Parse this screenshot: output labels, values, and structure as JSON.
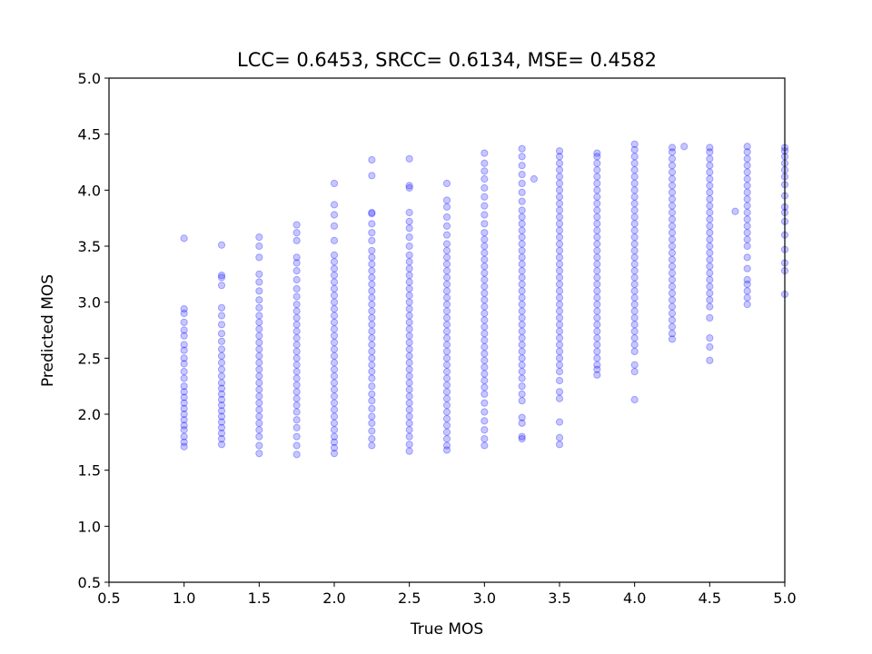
{
  "chart_data": {
    "type": "scatter",
    "title": "LCC= 0.6453, SRCC= 0.6134, MSE= 0.4582",
    "xlabel": "True MOS",
    "ylabel": "Predicted MOS",
    "xlim": [
      0.5,
      5.0
    ],
    "ylim": [
      0.5,
      5.0
    ],
    "xticks": [
      "0.5",
      "1.0",
      "1.5",
      "2.0",
      "2.5",
      "3.0",
      "3.5",
      "4.0",
      "4.5",
      "5.0"
    ],
    "yticks": [
      "0.5",
      "1.0",
      "1.5",
      "2.0",
      "2.5",
      "3.0",
      "3.5",
      "4.0",
      "4.5",
      "5.0"
    ],
    "grid": false,
    "marker_color": "#0000ff",
    "marker_alpha": 0.22,
    "columns": [
      {
        "x": 1.0,
        "y": [
          1.71,
          1.75,
          1.8,
          1.86,
          1.9,
          1.95,
          2.0,
          2.05,
          2.1,
          2.15,
          2.2,
          2.25,
          2.32,
          2.38,
          2.45,
          2.5,
          2.57,
          2.62,
          2.7,
          2.75,
          2.82,
          2.9,
          2.94,
          3.57
        ]
      },
      {
        "x": 1.25,
        "y": [
          1.73,
          1.78,
          1.83,
          1.88,
          1.93,
          1.98,
          2.03,
          2.08,
          2.13,
          2.18,
          2.23,
          2.28,
          2.34,
          2.4,
          2.46,
          2.52,
          2.58,
          2.65,
          2.72,
          2.8,
          2.88,
          2.95,
          3.15,
          3.22,
          3.24,
          3.51
        ]
      },
      {
        "x": 1.5,
        "y": [
          1.65,
          1.72,
          1.8,
          1.86,
          1.92,
          1.98,
          2.04,
          2.1,
          2.16,
          2.22,
          2.28,
          2.34,
          2.4,
          2.46,
          2.52,
          2.58,
          2.64,
          2.7,
          2.76,
          2.82,
          2.88,
          2.95,
          3.02,
          3.1,
          3.18,
          3.25,
          3.4,
          3.5,
          3.58
        ]
      },
      {
        "x": 1.75,
        "y": [
          1.64,
          1.72,
          1.8,
          1.88,
          1.95,
          2.02,
          2.08,
          2.14,
          2.2,
          2.26,
          2.32,
          2.38,
          2.44,
          2.5,
          2.56,
          2.62,
          2.68,
          2.74,
          2.8,
          2.86,
          2.92,
          2.98,
          3.05,
          3.12,
          3.2,
          3.28,
          3.35,
          3.4,
          3.55,
          3.62,
          3.69
        ]
      },
      {
        "x": 2.0,
        "y": [
          1.65,
          1.7,
          1.75,
          1.8,
          1.86,
          1.92,
          1.98,
          2.04,
          2.1,
          2.16,
          2.22,
          2.28,
          2.34,
          2.4,
          2.46,
          2.52,
          2.58,
          2.64,
          2.7,
          2.76,
          2.82,
          2.88,
          2.94,
          3.0,
          3.06,
          3.12,
          3.18,
          3.24,
          3.3,
          3.36,
          3.42,
          3.55,
          3.68,
          3.78,
          3.87,
          4.06
        ]
      },
      {
        "x": 2.25,
        "y": [
          1.72,
          1.78,
          1.85,
          1.92,
          1.98,
          2.05,
          2.12,
          2.18,
          2.25,
          2.32,
          2.38,
          2.44,
          2.5,
          2.56,
          2.62,
          2.68,
          2.74,
          2.8,
          2.86,
          2.92,
          2.98,
          3.04,
          3.1,
          3.16,
          3.22,
          3.28,
          3.34,
          3.4,
          3.46,
          3.55,
          3.62,
          3.7,
          3.79,
          3.8,
          4.13,
          4.27
        ]
      },
      {
        "x": 2.5,
        "y": [
          1.67,
          1.73,
          1.8,
          1.86,
          1.92,
          1.98,
          2.04,
          2.1,
          2.16,
          2.22,
          2.28,
          2.34,
          2.4,
          2.46,
          2.52,
          2.58,
          2.64,
          2.7,
          2.76,
          2.82,
          2.88,
          2.94,
          3.0,
          3.06,
          3.12,
          3.18,
          3.24,
          3.3,
          3.36,
          3.42,
          3.5,
          3.58,
          3.66,
          3.72,
          3.8,
          4.02,
          4.04,
          4.28
        ]
      },
      {
        "x": 2.75,
        "y": [
          1.68,
          1.72,
          1.78,
          1.84,
          1.9,
          1.96,
          2.02,
          2.08,
          2.14,
          2.2,
          2.26,
          2.32,
          2.38,
          2.44,
          2.5,
          2.56,
          2.62,
          2.68,
          2.74,
          2.8,
          2.86,
          2.92,
          2.98,
          3.04,
          3.1,
          3.16,
          3.22,
          3.28,
          3.34,
          3.4,
          3.46,
          3.52,
          3.6,
          3.68,
          3.76,
          3.85,
          3.91,
          4.06
        ]
      },
      {
        "x": 3.0,
        "y": [
          1.72,
          1.78,
          1.86,
          1.94,
          2.02,
          2.1,
          2.18,
          2.24,
          2.3,
          2.36,
          2.42,
          2.48,
          2.54,
          2.6,
          2.66,
          2.72,
          2.78,
          2.84,
          2.9,
          2.96,
          3.02,
          3.08,
          3.14,
          3.2,
          3.26,
          3.32,
          3.38,
          3.44,
          3.5,
          3.56,
          3.62,
          3.7,
          3.78,
          3.86,
          3.94,
          4.02,
          4.1,
          4.17,
          4.24,
          4.33
        ]
      },
      {
        "x": 3.25,
        "y": [
          1.78,
          1.8,
          1.92,
          1.97,
          2.12,
          2.18,
          2.25,
          2.32,
          2.38,
          2.44,
          2.5,
          2.56,
          2.62,
          2.68,
          2.74,
          2.8,
          2.86,
          2.92,
          2.98,
          3.04,
          3.1,
          3.16,
          3.22,
          3.28,
          3.34,
          3.4,
          3.46,
          3.52,
          3.58,
          3.64,
          3.7,
          3.76,
          3.82,
          3.9,
          3.98,
          4.06,
          4.14,
          4.22,
          4.3,
          4.37
        ]
      },
      {
        "x": 3.33,
        "y": [
          4.1
        ]
      },
      {
        "x": 3.5,
        "y": [
          1.73,
          1.79,
          1.93,
          2.14,
          2.2,
          2.3,
          2.38,
          2.44,
          2.5,
          2.56,
          2.62,
          2.68,
          2.74,
          2.8,
          2.86,
          2.92,
          2.98,
          3.04,
          3.1,
          3.16,
          3.22,
          3.28,
          3.34,
          3.4,
          3.46,
          3.52,
          3.58,
          3.64,
          3.7,
          3.76,
          3.82,
          3.88,
          3.94,
          4.0,
          4.06,
          4.12,
          4.18,
          4.24,
          4.3,
          4.35
        ]
      },
      {
        "x": 3.75,
        "y": [
          2.35,
          2.4,
          2.44,
          2.5,
          2.56,
          2.62,
          2.68,
          2.74,
          2.8,
          2.86,
          2.92,
          2.98,
          3.04,
          3.1,
          3.16,
          3.22,
          3.28,
          3.34,
          3.4,
          3.46,
          3.52,
          3.58,
          3.64,
          3.7,
          3.76,
          3.82,
          3.88,
          3.94,
          4.0,
          4.06,
          4.12,
          4.18,
          4.24,
          4.3,
          4.33
        ]
      },
      {
        "x": 4.0,
        "y": [
          2.13,
          2.38,
          2.44,
          2.56,
          2.62,
          2.68,
          2.74,
          2.8,
          2.86,
          2.92,
          2.98,
          3.04,
          3.1,
          3.16,
          3.22,
          3.28,
          3.34,
          3.4,
          3.46,
          3.52,
          3.58,
          3.64,
          3.7,
          3.76,
          3.82,
          3.88,
          3.94,
          4.0,
          4.06,
          4.12,
          4.18,
          4.24,
          4.3,
          4.36,
          4.41
        ]
      },
      {
        "x": 4.25,
        "y": [
          2.67,
          2.72,
          2.78,
          2.84,
          2.9,
          2.96,
          3.02,
          3.08,
          3.14,
          3.2,
          3.26,
          3.32,
          3.38,
          3.44,
          3.5,
          3.56,
          3.62,
          3.68,
          3.74,
          3.8,
          3.86,
          3.92,
          3.98,
          4.04,
          4.1,
          4.16,
          4.22,
          4.28,
          4.34,
          4.38
        ]
      },
      {
        "x": 4.33,
        "y": [
          4.39
        ]
      },
      {
        "x": 4.5,
        "y": [
          2.48,
          2.6,
          2.68,
          2.86,
          2.96,
          3.02,
          3.08,
          3.14,
          3.2,
          3.26,
          3.32,
          3.38,
          3.44,
          3.5,
          3.56,
          3.62,
          3.68,
          3.74,
          3.8,
          3.86,
          3.92,
          3.98,
          4.04,
          4.1,
          4.16,
          4.22,
          4.28,
          4.34,
          4.38
        ]
      },
      {
        "x": 4.67,
        "y": [
          3.81
        ]
      },
      {
        "x": 4.75,
        "y": [
          2.98,
          3.04,
          3.1,
          3.16,
          3.2,
          3.3,
          3.4,
          3.5,
          3.56,
          3.62,
          3.68,
          3.74,
          3.8,
          3.86,
          3.92,
          3.98,
          4.04,
          4.1,
          4.16,
          4.22,
          4.28,
          4.34,
          4.39
        ]
      },
      {
        "x": 5.0,
        "y": [
          3.07,
          3.28,
          3.35,
          3.47,
          3.6,
          3.72,
          3.8,
          3.85,
          3.95,
          4.05,
          4.12,
          4.18,
          4.24,
          4.3,
          4.35,
          4.38
        ]
      }
    ]
  }
}
